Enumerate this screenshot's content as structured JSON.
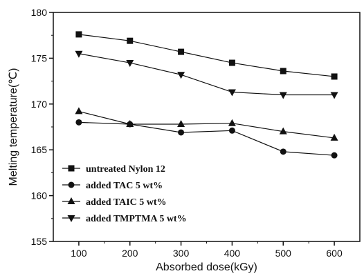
{
  "chart_data": {
    "type": "line",
    "xlabel": "Absorbed dose(kGy)",
    "ylabel": "Melting temperature(℃)",
    "xlim": [
      50,
      650
    ],
    "ylim": [
      155,
      180
    ],
    "xticks": [
      100,
      200,
      300,
      400,
      500,
      600
    ],
    "yticks": [
      155,
      160,
      165,
      170,
      175,
      180
    ],
    "x": [
      100,
      200,
      300,
      400,
      500,
      600
    ],
    "grid": false,
    "legend_position": "bottom-left",
    "series": [
      {
        "name": "untreated Nylon 12",
        "marker": "square",
        "values": [
          177.6,
          176.9,
          175.7,
          174.5,
          173.6,
          173.0
        ]
      },
      {
        "name": "added TAC 5 wt%",
        "marker": "circle",
        "values": [
          168.0,
          167.8,
          166.9,
          167.1,
          164.8,
          164.4
        ]
      },
      {
        "name": "added TAIC 5 wt%",
        "marker": "triangle-up",
        "values": [
          169.2,
          167.8,
          167.8,
          167.9,
          167.0,
          166.3
        ]
      },
      {
        "name": "added TMPTMA 5 wt%",
        "marker": "triangle-down",
        "values": [
          175.5,
          174.5,
          173.2,
          171.3,
          171.0,
          171.0
        ]
      }
    ]
  }
}
